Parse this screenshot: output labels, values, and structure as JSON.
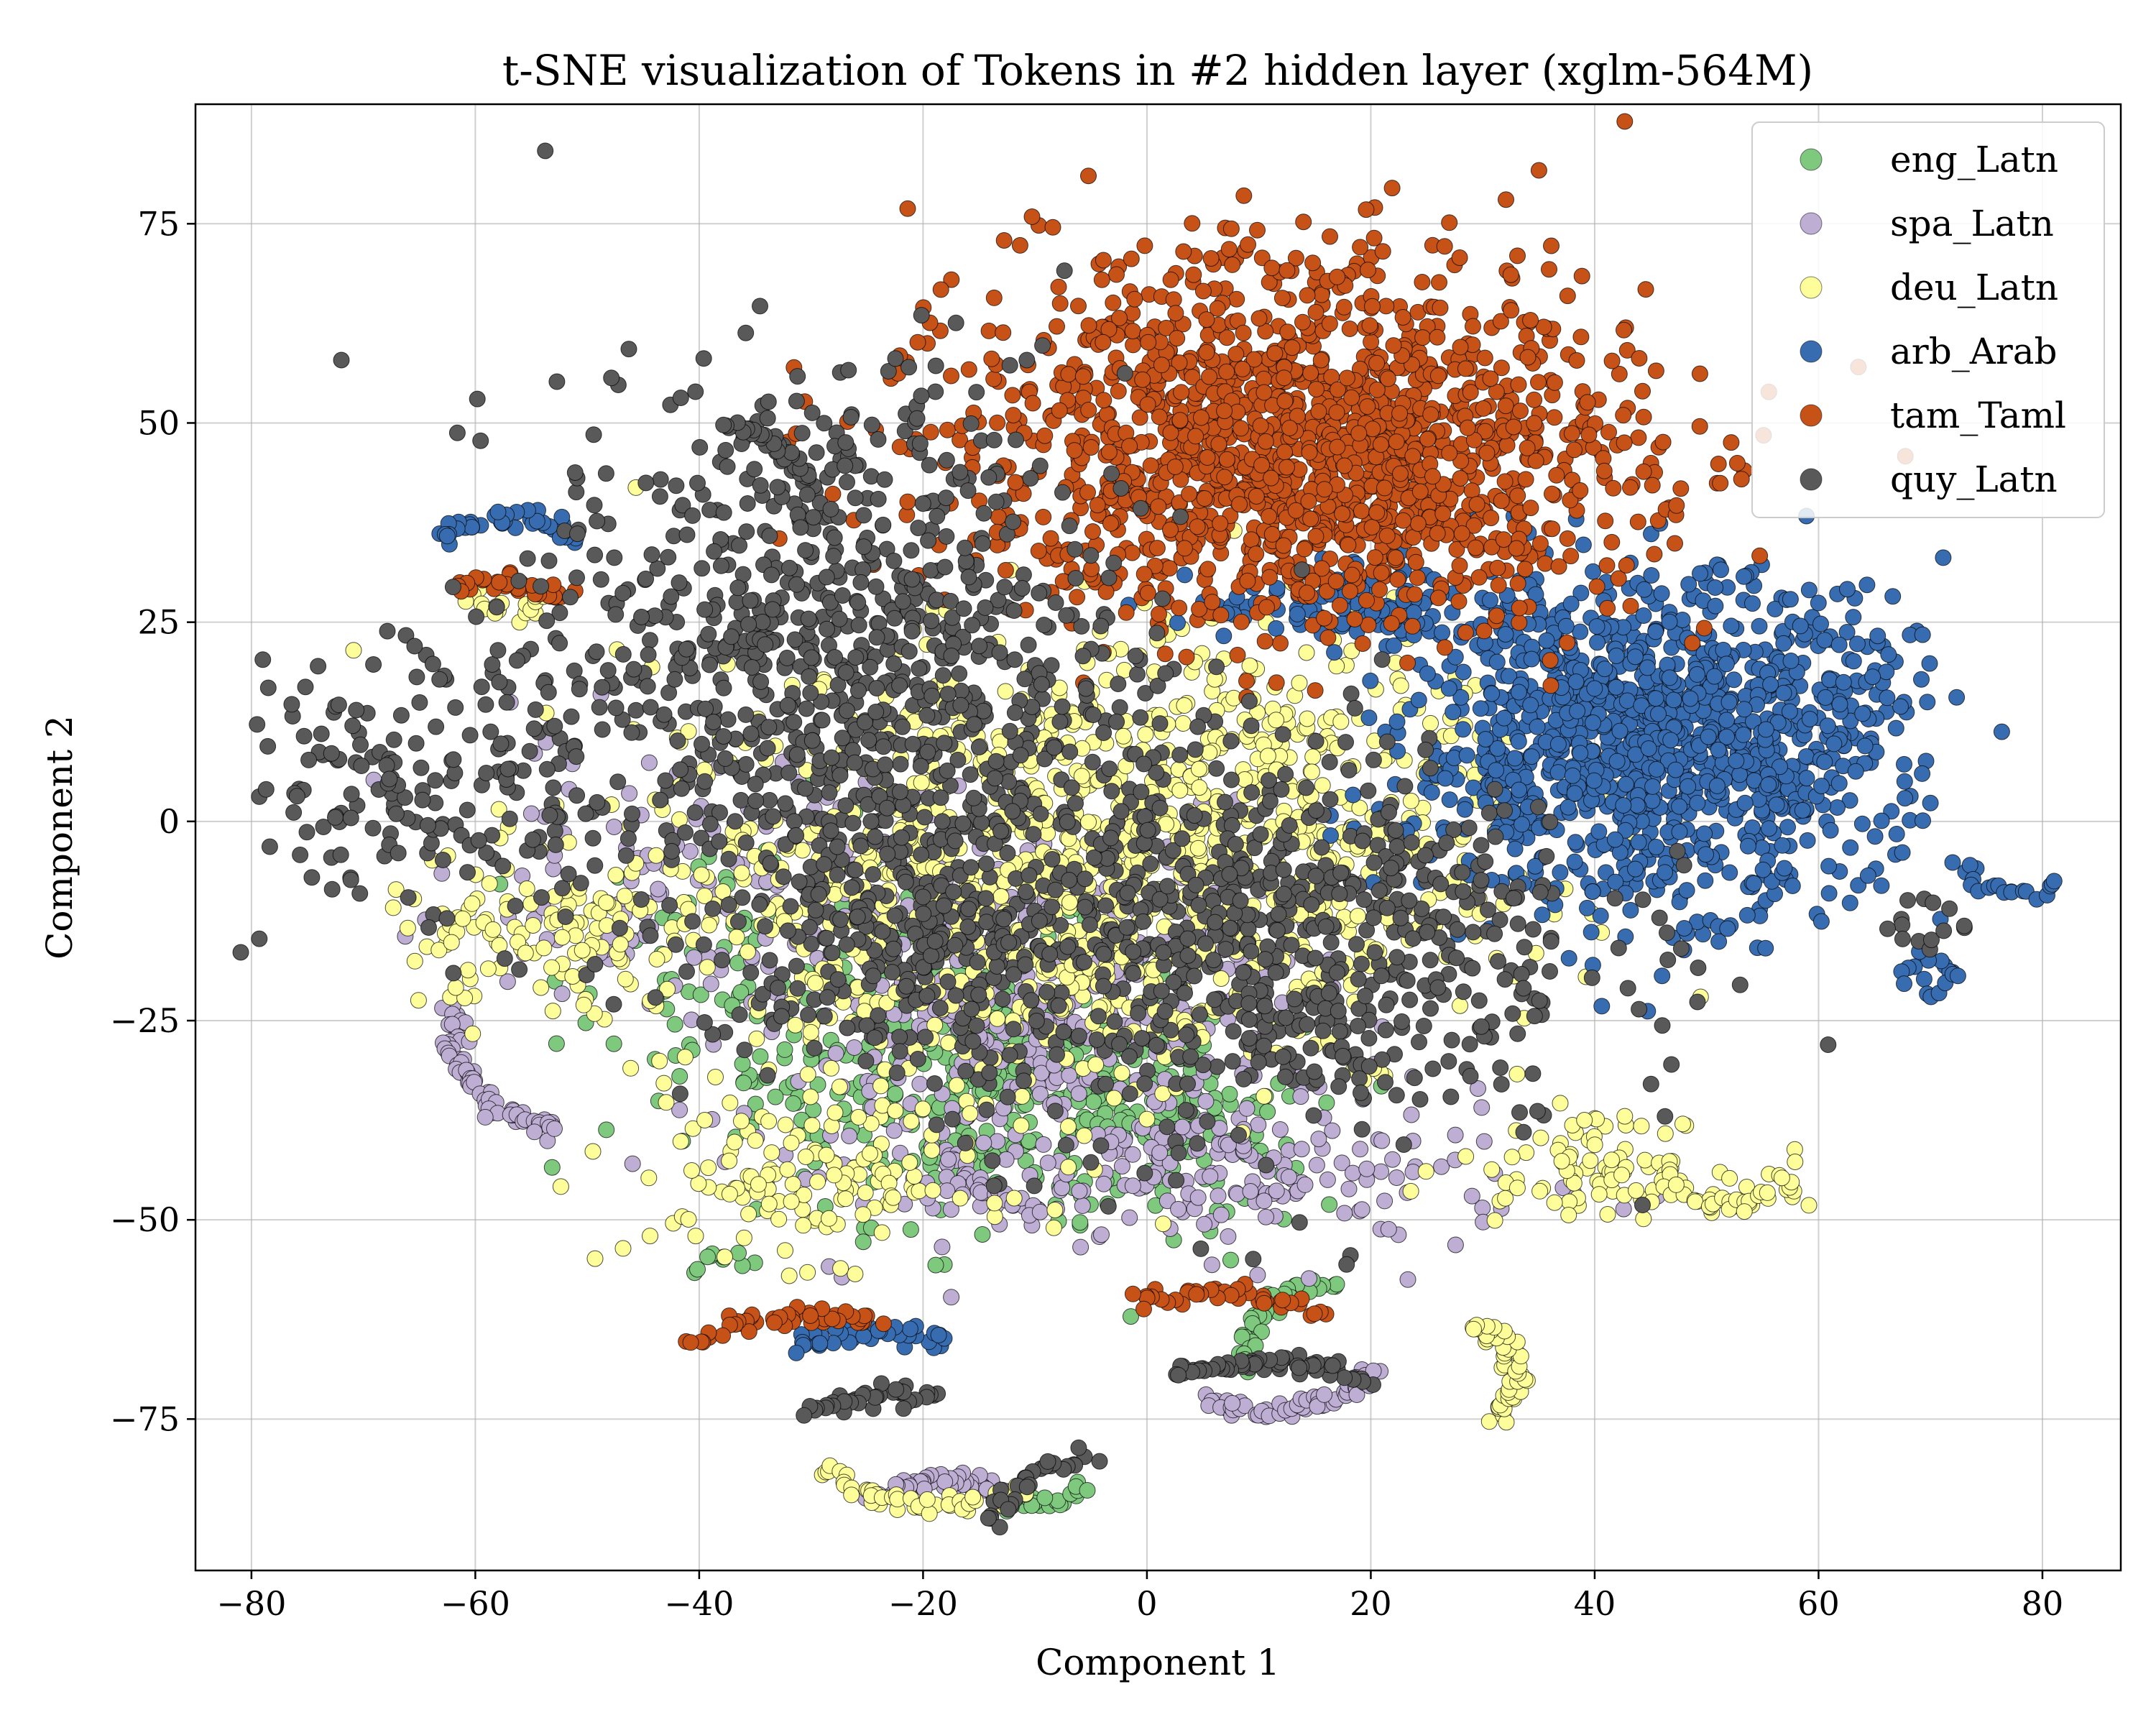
{
  "chart_data": {
    "type": "scatter",
    "title": "t-SNE visualization of Tokens in #2 hidden layer (xglm-564M)",
    "xlabel": "Component 1",
    "ylabel": "Component 2",
    "xlim": [
      -85,
      87
    ],
    "ylim": [
      -94,
      90
    ],
    "xticks": [
      -80,
      -60,
      -40,
      -20,
      0,
      20,
      40,
      60,
      80
    ],
    "yticks": [
      -75,
      -50,
      -25,
      0,
      25,
      50,
      75
    ],
    "xtick_labels": [
      "−80",
      "−60",
      "−40",
      "−20",
      "0",
      "20",
      "40",
      "60",
      "80"
    ],
    "ytick_labels": [
      "−75",
      "−50",
      "−25",
      "0",
      "25",
      "50",
      "75"
    ],
    "grid": true,
    "legend_position": "top-right",
    "series": [
      {
        "name": "eng_Latn",
        "color": "#7fc97f",
        "clusters": [
          {
            "cx": -15,
            "cy": -32,
            "sx": 10,
            "sy": 9,
            "n": 420
          },
          {
            "cx": -35,
            "cy": -18,
            "sx": 8,
            "sy": 10,
            "n": 80
          },
          {
            "cx": 2,
            "cy": -38,
            "sx": 6,
            "sy": 6,
            "n": 120
          }
        ],
        "arcs": [
          {
            "cx": 17,
            "cy": -66,
            "r": 8,
            "a0": 90,
            "a1": 190,
            "n": 40
          },
          {
            "cx": -10,
            "cy": -82,
            "r": 4,
            "a0": 200,
            "a1": 340,
            "n": 30
          },
          {
            "cx": -38,
            "cy": -56,
            "r": 2,
            "a0": 0,
            "a1": 200,
            "n": 10
          }
        ]
      },
      {
        "name": "spa_Latn",
        "color": "#beaed4",
        "clusters": [
          {
            "cx": -12,
            "cy": -22,
            "sx": 12,
            "sy": 12,
            "n": 500
          },
          {
            "cx": 10,
            "cy": -45,
            "sx": 12,
            "sy": 5,
            "n": 150
          },
          {
            "cx": -45,
            "cy": -5,
            "sx": 8,
            "sy": 8,
            "n": 80
          }
        ],
        "arcs": [
          {
            "cx": -48,
            "cy": -26,
            "r": 14,
            "a0": 170,
            "a1": 250,
            "n": 70
          },
          {
            "cx": -18,
            "cy": -95,
            "r": 12,
            "a0": 60,
            "a1": 120,
            "n": 60
          },
          {
            "cx": 10,
            "cy": -60,
            "r": 14,
            "a0": 250,
            "a1": 320,
            "n": 60
          },
          {
            "cx": -10,
            "cy": -40,
            "r": 8,
            "a0": 190,
            "a1": 270,
            "n": 40
          }
        ]
      },
      {
        "name": "deu_Latn",
        "color": "#fdfd99",
        "clusters": [
          {
            "cx": -10,
            "cy": -8,
            "sx": 18,
            "sy": 14,
            "n": 900
          },
          {
            "cx": 12,
            "cy": 5,
            "sx": 12,
            "sy": 12,
            "n": 300
          },
          {
            "cx": -55,
            "cy": -15,
            "sx": 7,
            "sy": 5,
            "n": 110
          },
          {
            "cx": 40,
            "cy": -43,
            "sx": 6,
            "sy": 3,
            "n": 90
          },
          {
            "cx": -30,
            "cy": -45,
            "sx": 8,
            "sy": 5,
            "n": 120
          }
        ],
        "arcs": [
          {
            "cx": 25,
            "cy": -70,
            "r": 8,
            "a0": -40,
            "a1": 60,
            "n": 50
          },
          {
            "cx": -18,
            "cy": -72,
            "r": 14,
            "a0": 220,
            "a1": 300,
            "n": 50
          },
          {
            "cx": 52,
            "cy": -42,
            "r": 6,
            "a0": 200,
            "a1": 340,
            "n": 40
          },
          {
            "cx": -57,
            "cy": 29,
            "r": 3,
            "a0": 180,
            "a1": 360,
            "n": 20
          }
        ]
      },
      {
        "name": "arb_Arab",
        "color": "#386cb0",
        "clusters": [
          {
            "cx": 44,
            "cy": 10,
            "sx": 10,
            "sy": 10,
            "n": 1100
          },
          {
            "cx": 20,
            "cy": 27,
            "sx": 8,
            "sy": 2.5,
            "n": 120
          },
          {
            "cx": 60,
            "cy": 12,
            "sx": 6,
            "sy": 10,
            "n": 120
          }
        ],
        "arcs": [
          {
            "cx": -57,
            "cy": 30,
            "r": 8,
            "a0": 40,
            "a1": 140,
            "n": 40
          },
          {
            "cx": -25,
            "cy": -78,
            "r": 14,
            "a0": 60,
            "a1": 120,
            "n": 40
          },
          {
            "cx": 78,
            "cy": -3,
            "r": 6,
            "a0": 210,
            "a1": 300,
            "n": 20
          },
          {
            "cx": 70,
            "cy": -19,
            "r": 2,
            "a0": 0,
            "a1": 360,
            "n": 18
          }
        ]
      },
      {
        "name": "tam_Taml",
        "color": "#c65217",
        "clusters": [
          {
            "cx": 14,
            "cy": 45,
            "sx": 15,
            "sy": 10,
            "n": 1400
          },
          {
            "cx": 10,
            "cy": 65,
            "sx": 13,
            "sy": 7,
            "n": 150
          }
        ],
        "arcs": [
          {
            "cx": -30,
            "cy": -80,
            "r": 18,
            "a0": 70,
            "a1": 125,
            "n": 45
          },
          {
            "cx": 6,
            "cy": -75,
            "r": 16,
            "a0": 55,
            "a1": 115,
            "n": 40
          },
          {
            "cx": -58,
            "cy": 20,
            "r": 10,
            "a0": 50,
            "a1": 110,
            "n": 30
          }
        ]
      },
      {
        "name": "quy_Latn",
        "color": "#595959",
        "clusters": [
          {
            "cx": -28,
            "cy": 20,
            "sx": 13,
            "sy": 18,
            "n": 900
          },
          {
            "cx": 8,
            "cy": -15,
            "sx": 16,
            "sy": 13,
            "n": 800
          },
          {
            "cx": -22,
            "cy": -13,
            "sx": 8,
            "sy": 8,
            "n": 200
          },
          {
            "cx": -60,
            "cy": 5,
            "sx": 8,
            "sy": 10,
            "n": 120
          },
          {
            "cx": -72,
            "cy": 5,
            "sx": 4,
            "sy": 8,
            "n": 60
          }
        ],
        "arcs": [
          {
            "cx": 10,
            "cy": -90,
            "r": 22,
            "a0": 65,
            "a1": 110,
            "n": 60
          },
          {
            "cx": -22,
            "cy": -88,
            "r": 16,
            "a0": 80,
            "a1": 120,
            "n": 40
          },
          {
            "cx": -4,
            "cy": -90,
            "r": 10,
            "a0": 95,
            "a1": 170,
            "n": 30
          },
          {
            "cx": -40,
            "cy": 40,
            "r": 10,
            "a0": 20,
            "a1": 80,
            "n": 30
          },
          {
            "cx": 69,
            "cy": -13,
            "r": 3,
            "a0": 0,
            "a1": 360,
            "n": 14
          }
        ]
      }
    ]
  }
}
